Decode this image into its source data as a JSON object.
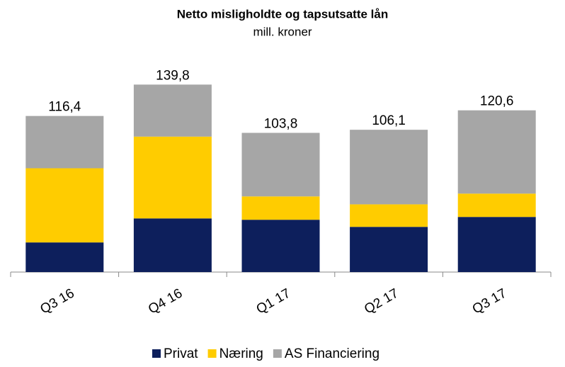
{
  "chart_data": {
    "type": "stacked_bar",
    "title": "Netto misligholdte og tapsutsatte lån",
    "subtitle": "mill. kroner",
    "categories": [
      "Q3 16",
      "Q4 16",
      "Q1 17",
      "Q2 17",
      "Q3 17"
    ],
    "series": [
      {
        "name": "Privat",
        "color": "#0d1f5c",
        "values": [
          22.1,
          40.0,
          39.0,
          33.7,
          41.1
        ]
      },
      {
        "name": "Næring",
        "color": "#ffcc00",
        "values": [
          55.3,
          61.0,
          17.4,
          16.8,
          17.4
        ]
      },
      {
        "name": "AS Financiering",
        "color": "#a6a6a6",
        "values": [
          39.0,
          38.8,
          47.4,
          55.6,
          62.1
        ]
      }
    ],
    "totals": [
      116.4,
      139.8,
      103.8,
      106.1,
      120.6
    ],
    "total_labels": [
      "116,4",
      "139,8",
      "103,8",
      "106,1",
      "120,6"
    ],
    "ylim": [
      0,
      140
    ],
    "legend": "bottom"
  }
}
